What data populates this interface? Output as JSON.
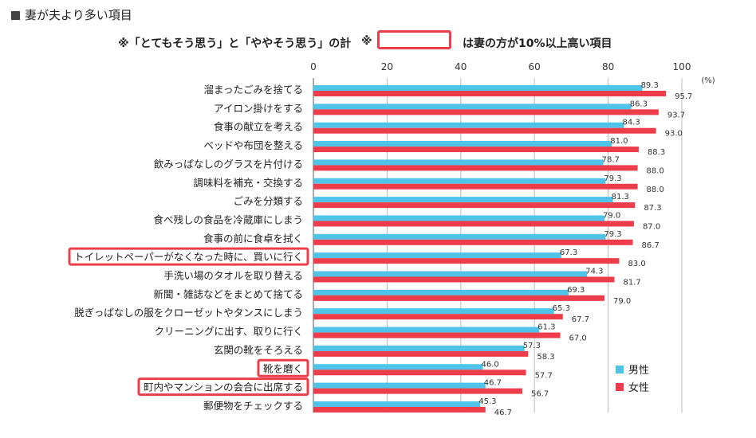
{
  "header": {
    "title": "妻が夫より多い項目"
  },
  "note": {
    "left": "※「とてもそう思う」と「ややそう思う」の計",
    "mark": "※",
    "right": "は妻の方が10%以上高い項目"
  },
  "colors": {
    "male": "#4fc3e8",
    "female": "#ee3d4a",
    "highlight": "#ee3d4a"
  },
  "chart_data": {
    "type": "bar",
    "orientation": "horizontal",
    "unit_label": "(%)",
    "xlim": [
      0,
      100
    ],
    "xticks": [
      "0",
      "20",
      "40",
      "60",
      "80",
      "100"
    ],
    "grid": true,
    "legend_position": "bottom-right",
    "categories": [
      "溜まったごみを捨てる",
      "アイロン掛けをする",
      "食事の献立を考える",
      "ベッドや布団を整える",
      "飲みっぱなしのグラスを片付ける",
      "調味料を補充・交換する",
      "ごみを分類する",
      "食べ残しの食品を冷蔵庫にしまう",
      "食事の前に食卓を拭く",
      "トイレットペーパーがなくなった時に、買いに行く",
      "手洗い場のタオルを取り替える",
      "新聞・雑誌などをまとめて捨てる",
      "脱ぎっぱなしの服をクローゼットやタンスにしまう",
      "クリーニングに出す、取りに行く",
      "玄関の靴をそろえる",
      "靴を磨く",
      "町内やマンションの会合に出席する",
      "郵便物をチェックする"
    ],
    "highlighted": [
      false,
      false,
      false,
      false,
      false,
      false,
      false,
      false,
      false,
      true,
      false,
      false,
      false,
      false,
      false,
      true,
      true,
      false
    ],
    "series": [
      {
        "name": "男性",
        "values": [
          89.3,
          86.3,
          84.3,
          81.0,
          78.7,
          79.3,
          81.3,
          79.0,
          79.3,
          67.3,
          74.3,
          69.3,
          65.3,
          61.3,
          57.3,
          46.0,
          46.7,
          45.3
        ],
        "labels": [
          "89.3",
          "86.3",
          "84.3",
          "81.0",
          "78.7",
          "79.3",
          "81.3",
          "79.0",
          "79.3",
          "67.3",
          "74.3",
          "69.3",
          "65.3",
          "61.3",
          "57.3",
          "46.0",
          "46.7",
          "45.3"
        ]
      },
      {
        "name": "女性",
        "values": [
          95.7,
          93.7,
          93.0,
          88.3,
          88.0,
          88.0,
          87.3,
          87.0,
          86.7,
          83.0,
          81.7,
          79.0,
          67.7,
          67.0,
          58.3,
          57.7,
          56.7,
          46.7
        ],
        "labels": [
          "95.7",
          "93.7",
          "93.0",
          "88.3",
          "88.0",
          "88.0",
          "87.3",
          "87.0",
          "86.7",
          "83.0",
          "81.7",
          "79.0",
          "67.7",
          "67.0",
          "58.3",
          "57.7",
          "56.7",
          "46.7"
        ]
      }
    ]
  }
}
